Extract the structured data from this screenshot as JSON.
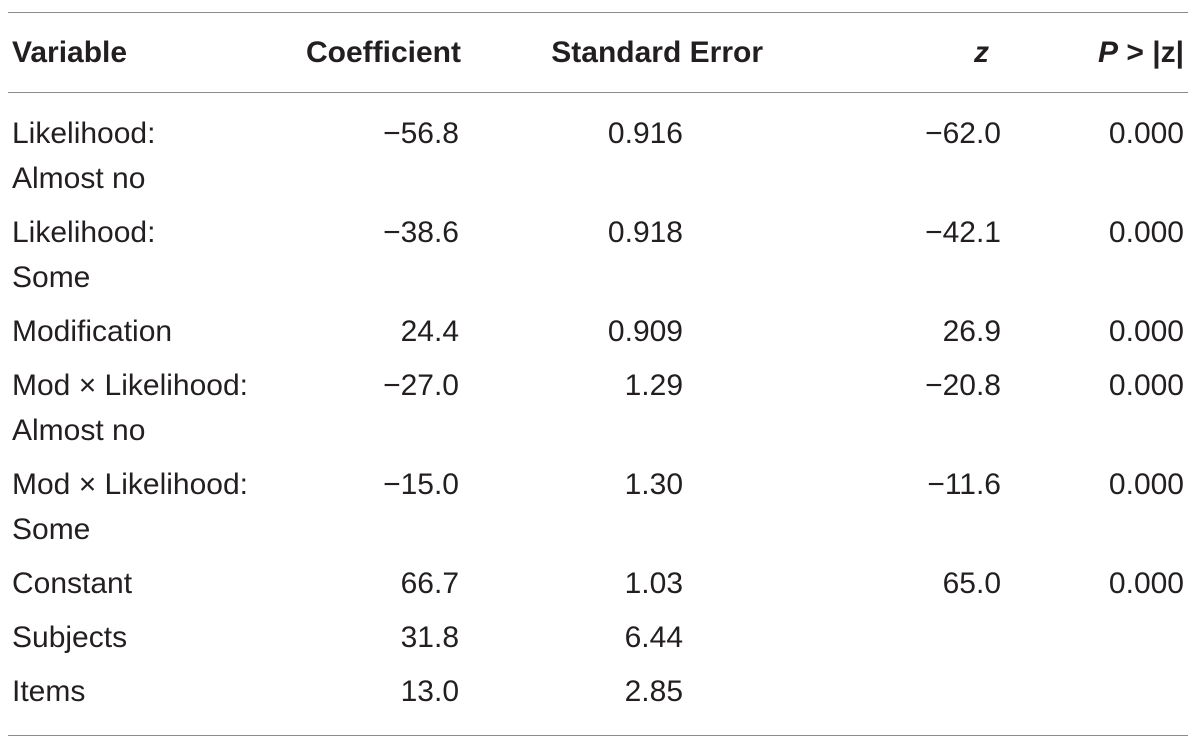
{
  "table": {
    "headers": {
      "variable": "Variable",
      "coefficient": "Coefficient",
      "standard_error": "Standard Error",
      "z": "z",
      "p_prefix": "P",
      "p_suffix": " > |z|"
    },
    "rows": [
      {
        "variable_line1": "Likelihood:",
        "variable_line2": "Almost no",
        "coefficient": "−56.8",
        "standard_error": "0.916",
        "z": "−62.0",
        "p": "0.000"
      },
      {
        "variable_line1": "Likelihood:",
        "variable_line2": "Some",
        "coefficient": "−38.6",
        "standard_error": "0.918",
        "z": "−42.1",
        "p": "0.000"
      },
      {
        "variable_line1": "Modification",
        "variable_line2": "",
        "coefficient": "24.4",
        "standard_error": "0.909",
        "z": "26.9",
        "p": "0.000"
      },
      {
        "variable_line1": "Mod × Likelihood:",
        "variable_line2": "Almost no",
        "coefficient": "−27.0",
        "standard_error": "1.29",
        "z": "−20.8",
        "p": "0.000"
      },
      {
        "variable_line1": "Mod × Likelihood:",
        "variable_line2": "Some",
        "coefficient": "−15.0",
        "standard_error": "1.30",
        "z": "−11.6",
        "p": "0.000"
      },
      {
        "variable_line1": "Constant",
        "variable_line2": "",
        "coefficient": "66.7",
        "standard_error": "1.03",
        "z": "65.0",
        "p": "0.000"
      },
      {
        "variable_line1": "Subjects",
        "variable_line2": "",
        "coefficient": "31.8",
        "standard_error": "6.44",
        "z": "",
        "p": ""
      },
      {
        "variable_line1": "Items",
        "variable_line2": "",
        "coefficient": "13.0",
        "standard_error": "2.85",
        "z": "",
        "p": ""
      }
    ]
  },
  "colors": {
    "text": "#231f20",
    "rule": "#8c8c8c"
  }
}
